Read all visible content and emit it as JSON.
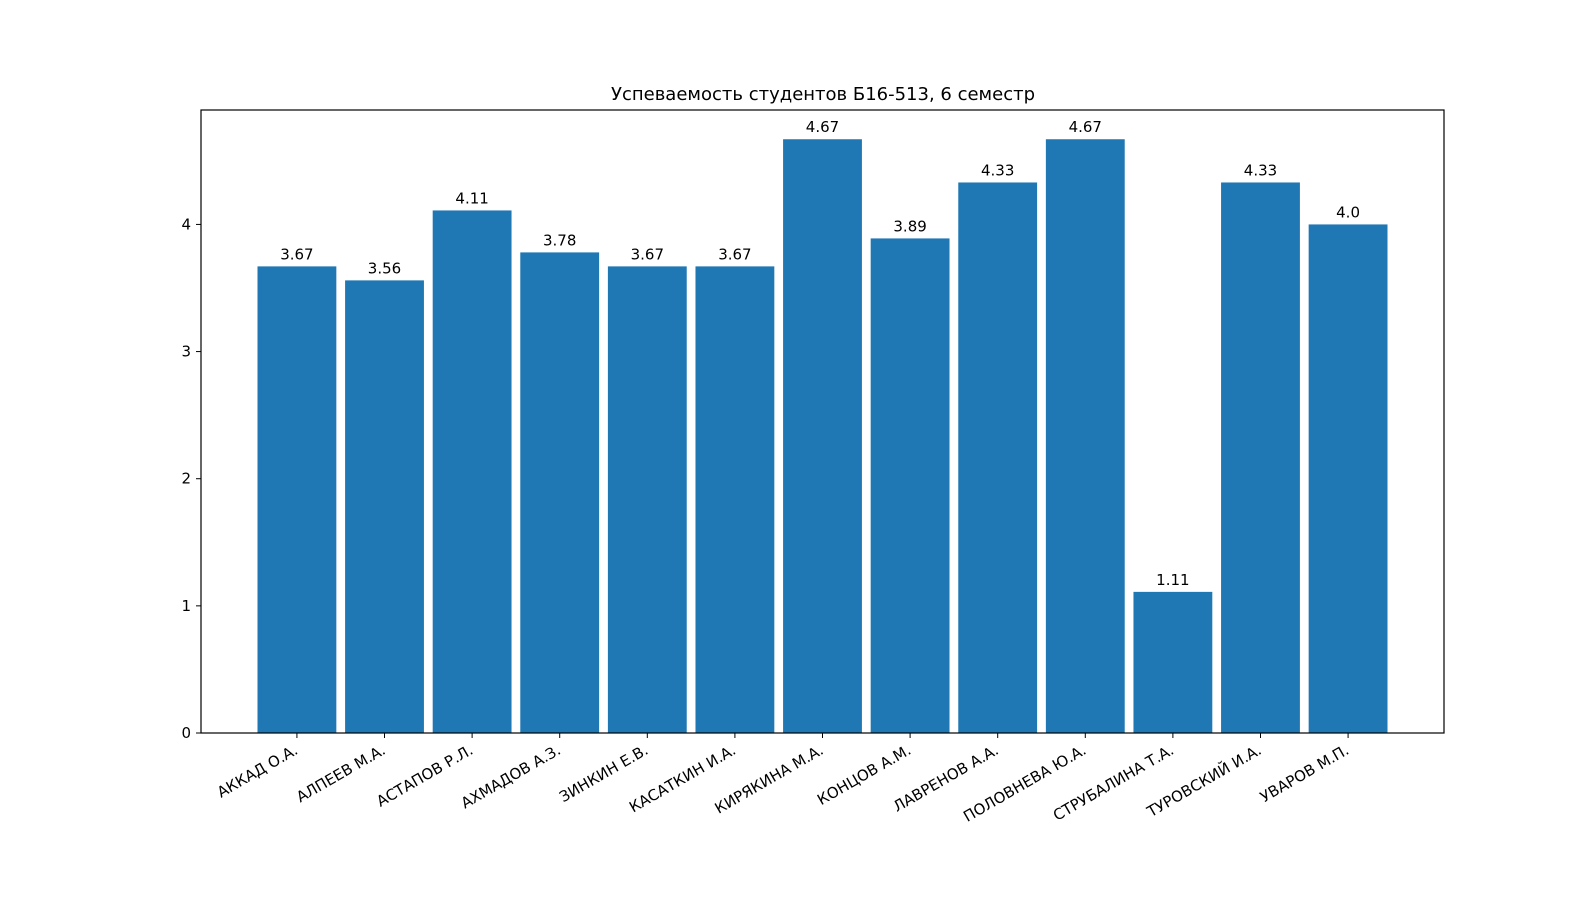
{
  "chart_data": {
    "type": "bar",
    "title": "Успеваемость студентов Б16-513, 6 семестр",
    "xlabel": "",
    "ylabel": "",
    "categories": [
      "АККАД О.А.",
      "АЛПЕЕВ М.А.",
      "АСТАПОВ Р.Л.",
      "АХМАДОВ А.З.",
      "ЗИНКИН Е.В.",
      "КАСАТКИН И.А.",
      "КИРЯКИНА М.А.",
      "КОНЦОВ А.М.",
      "ЛАВРЕНОВ А.А.",
      "ПОЛОВНЕВА Ю.А.",
      "СТРУБАЛИНА Т.А.",
      "ТУРОВСКИЙ И.А.",
      "УВАРОВ М.П."
    ],
    "values": [
      3.67,
      3.56,
      4.11,
      3.78,
      3.67,
      3.67,
      4.67,
      3.89,
      4.33,
      4.67,
      1.11,
      4.33,
      4.0
    ],
    "value_labels": [
      "3.67",
      "3.56",
      "4.11",
      "3.78",
      "3.67",
      "3.67",
      "4.67",
      "3.89",
      "4.33",
      "4.67",
      "1.11",
      "4.33",
      "4.0"
    ],
    "yticks": [
      "0",
      "1",
      "2",
      "3",
      "4"
    ],
    "ylim": [
      0,
      4.9
    ],
    "grid": false,
    "bar_color": "#1f77b4"
  }
}
